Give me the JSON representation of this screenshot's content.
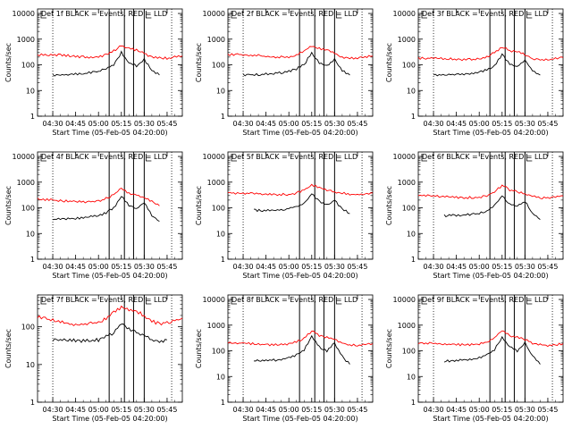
{
  "figure": {
    "start_time_label": "Start Time (05-Feb-05 04:20:00)",
    "ylabel": "Counts/sec",
    "ytick_labels": [
      "1",
      "10",
      "100",
      "1000",
      "10000"
    ],
    "xtick_labels": [
      "04:30",
      "04:45",
      "05:00",
      "05:15",
      "05:30",
      "05:45"
    ]
  },
  "chart_data": [
    {
      "type": "line",
      "title": "Det 1f BLACK = Events, RED = LLD",
      "xlabel": "Start Time (05-Feb-05 04:20:00)",
      "ylabel": "Counts/sec",
      "yscale": "log",
      "ylim": [
        1,
        15000
      ],
      "xlim": [
        "04:20",
        "05:55"
      ],
      "xticks": [
        "04:30",
        "04:45",
        "05:00",
        "05:15",
        "05:30",
        "05:45"
      ],
      "vlines_dotted": [
        "04:30",
        "05:48"
      ],
      "vlines_solid": [
        "05:07",
        "05:17",
        "05:23",
        "05:30"
      ],
      "series": [
        {
          "name": "Events",
          "color": "#000000",
          "x": [
            "04:30",
            "04:40",
            "04:50",
            "05:00",
            "05:05",
            "05:10",
            "05:15",
            "05:20",
            "05:25",
            "05:30",
            "05:35",
            "05:40"
          ],
          "y": [
            40,
            42,
            45,
            55,
            70,
            100,
            300,
            120,
            90,
            160,
            60,
            40
          ]
        },
        {
          "name": "LLD",
          "color": "#ff0000",
          "x": [
            "04:20",
            "04:30",
            "04:40",
            "04:50",
            "05:00",
            "05:05",
            "05:10",
            "05:15",
            "05:20",
            "05:25",
            "05:30",
            "05:35",
            "05:40",
            "05:45",
            "05:55"
          ],
          "y": [
            250,
            250,
            230,
            200,
            200,
            250,
            350,
            550,
            420,
            380,
            280,
            200,
            190,
            180,
            220
          ]
        }
      ]
    },
    {
      "type": "line",
      "title": "Det 2f BLACK = Events, RED = LLD",
      "xlabel": "Start Time (05-Feb-05 04:20:00)",
      "ylabel": "Counts/sec",
      "yscale": "log",
      "ylim": [
        1,
        15000
      ],
      "xlim": [
        "04:20",
        "05:55"
      ],
      "xticks": [
        "04:30",
        "04:45",
        "05:00",
        "05:15",
        "05:30",
        "05:45"
      ],
      "vlines_dotted": [
        "04:30",
        "05:48"
      ],
      "vlines_solid": [
        "05:07",
        "05:17",
        "05:23",
        "05:30"
      ],
      "series": [
        {
          "name": "Events",
          "color": "#000000",
          "x": [
            "04:30",
            "04:40",
            "04:50",
            "05:00",
            "05:05",
            "05:10",
            "05:15",
            "05:20",
            "05:25",
            "05:30",
            "05:35",
            "05:40"
          ],
          "y": [
            40,
            42,
            45,
            55,
            70,
            100,
            300,
            120,
            90,
            160,
            60,
            40
          ]
        },
        {
          "name": "LLD",
          "color": "#ff0000",
          "x": [
            "04:20",
            "04:30",
            "04:40",
            "04:50",
            "05:00",
            "05:05",
            "05:10",
            "05:15",
            "05:20",
            "05:25",
            "05:30",
            "05:35",
            "05:40",
            "05:45",
            "05:55"
          ],
          "y": [
            250,
            250,
            230,
            200,
            200,
            250,
            350,
            550,
            420,
            380,
            280,
            200,
            190,
            180,
            220
          ]
        }
      ]
    },
    {
      "type": "line",
      "title": "Det 3f BLACK = Events, RED = LLD",
      "xlabel": "Start Time (05-Feb-05 04:20:00)",
      "ylabel": "Counts/sec",
      "yscale": "log",
      "ylim": [
        1,
        15000
      ],
      "xlim": [
        "04:20",
        "05:55"
      ],
      "xticks": [
        "04:30",
        "04:45",
        "05:00",
        "05:15",
        "05:30",
        "05:45"
      ],
      "vlines_dotted": [
        "04:30",
        "05:48"
      ],
      "vlines_solid": [
        "05:07",
        "05:17",
        "05:23",
        "05:30"
      ],
      "series": [
        {
          "name": "Events",
          "color": "#000000",
          "x": [
            "04:30",
            "04:40",
            "04:50",
            "05:00",
            "05:05",
            "05:10",
            "05:15",
            "05:20",
            "05:25",
            "05:30",
            "05:35",
            "05:40"
          ],
          "y": [
            40,
            42,
            45,
            50,
            65,
            90,
            250,
            110,
            85,
            150,
            60,
            40
          ]
        },
        {
          "name": "LLD",
          "color": "#ff0000",
          "x": [
            "04:20",
            "04:30",
            "04:40",
            "04:50",
            "05:00",
            "05:05",
            "05:10",
            "05:15",
            "05:20",
            "05:25",
            "05:30",
            "05:35",
            "05:40",
            "05:45",
            "05:55"
          ],
          "y": [
            180,
            180,
            170,
            160,
            170,
            200,
            300,
            500,
            350,
            320,
            250,
            170,
            160,
            160,
            190
          ]
        }
      ]
    },
    {
      "type": "line",
      "title": "Det 4f BLACK = Events, RED = LLD",
      "xlabel": "Start Time (05-Feb-05 04:20:00)",
      "ylabel": "Counts/sec",
      "yscale": "log",
      "ylim": [
        1,
        15000
      ],
      "xlim": [
        "04:20",
        "05:55"
      ],
      "xticks": [
        "04:30",
        "04:45",
        "05:00",
        "05:15",
        "05:30",
        "05:45"
      ],
      "vlines_dotted": [
        "04:30",
        "05:48"
      ],
      "vlines_solid": [
        "05:07",
        "05:17",
        "05:23",
        "05:30"
      ],
      "series": [
        {
          "name": "Events",
          "color": "#000000",
          "x": [
            "04:30",
            "04:40",
            "04:50",
            "05:00",
            "05:05",
            "05:10",
            "05:15",
            "05:20",
            "05:25",
            "05:30",
            "05:35",
            "05:40"
          ],
          "y": [
            35,
            38,
            40,
            50,
            65,
            100,
            280,
            120,
            90,
            170,
            50,
            30
          ]
        },
        {
          "name": "LLD",
          "color": "#ff0000",
          "x": [
            "04:20",
            "04:30",
            "04:40",
            "04:50",
            "05:00",
            "05:05",
            "05:10",
            "05:15",
            "05:20",
            "05:25",
            "05:30",
            "05:35",
            "05:40"
          ],
          "y": [
            220,
            200,
            180,
            170,
            180,
            230,
            330,
            550,
            380,
            320,
            250,
            180,
            120
          ]
        }
      ]
    },
    {
      "type": "line",
      "title": "Det 5f BLACK = Events, RED = LLD",
      "xlabel": "Start Time (05-Feb-05 04:20:00)",
      "ylabel": "Counts/sec",
      "yscale": "log",
      "ylim": [
        1,
        15000
      ],
      "xlim": [
        "04:20",
        "05:55"
      ],
      "xticks": [
        "04:30",
        "04:45",
        "05:00",
        "05:15",
        "05:30",
        "05:45"
      ],
      "vlines_dotted": [
        "04:30",
        "05:48"
      ],
      "vlines_solid": [
        "05:07",
        "05:17",
        "05:23",
        "05:30"
      ],
      "series": [
        {
          "name": "Events",
          "color": "#000000",
          "x": [
            "04:37",
            "04:45",
            "04:55",
            "05:00",
            "05:05",
            "05:10",
            "05:15",
            "05:20",
            "05:25",
            "05:30",
            "05:35",
            "05:40"
          ],
          "y": [
            80,
            80,
            85,
            95,
            110,
            150,
            350,
            180,
            130,
            200,
            90,
            60
          ]
        },
        {
          "name": "LLD",
          "color": "#ff0000",
          "x": [
            "04:20",
            "04:30",
            "04:40",
            "04:50",
            "05:00",
            "05:05",
            "05:10",
            "05:15",
            "05:20",
            "05:25",
            "05:30",
            "05:35",
            "05:40",
            "05:45",
            "05:55"
          ],
          "y": [
            380,
            370,
            350,
            330,
            330,
            380,
            500,
            800,
            600,
            500,
            420,
            370,
            340,
            320,
            380
          ]
        }
      ]
    },
    {
      "type": "line",
      "title": "Det 6f BLACK = Events, RED = LLD",
      "xlabel": "Start Time (05-Feb-05 04:20:00)",
      "ylabel": "Counts/sec",
      "yscale": "log",
      "ylim": [
        1,
        15000
      ],
      "xlim": [
        "04:20",
        "05:55"
      ],
      "xticks": [
        "04:30",
        "04:45",
        "05:00",
        "05:15",
        "05:30",
        "05:45"
      ],
      "vlines_dotted": [
        "04:30",
        "05:48"
      ],
      "vlines_solid": [
        "05:07",
        "05:17",
        "05:23",
        "05:30"
      ],
      "series": [
        {
          "name": "Events",
          "color": "#000000",
          "x": [
            "04:37",
            "04:45",
            "04:55",
            "05:00",
            "05:05",
            "05:10",
            "05:15",
            "05:20",
            "05:25",
            "05:30",
            "05:35",
            "05:40"
          ],
          "y": [
            50,
            50,
            55,
            60,
            75,
            120,
            300,
            140,
            110,
            180,
            60,
            35
          ]
        },
        {
          "name": "LLD",
          "color": "#ff0000",
          "x": [
            "04:20",
            "04:30",
            "04:40",
            "04:50",
            "05:00",
            "05:05",
            "05:10",
            "05:15",
            "05:20",
            "05:25",
            "05:30",
            "05:35",
            "05:40",
            "05:45",
            "05:55"
          ],
          "y": [
            300,
            290,
            270,
            250,
            250,
            300,
            420,
            750,
            500,
            420,
            350,
            280,
            250,
            240,
            290
          ]
        }
      ]
    },
    {
      "type": "line",
      "title": "Det 7f BLACK = Events, RED = LLD",
      "xlabel": "Start Time (05-Feb-05 04:20:00)",
      "ylabel": "Counts/sec",
      "yscale": "log",
      "ylim": [
        1,
        700
      ],
      "xlim": [
        "04:20",
        "05:55"
      ],
      "xticks": [
        "04:30",
        "04:45",
        "05:00",
        "05:15",
        "05:30",
        "05:45"
      ],
      "vlines_dotted": [
        "04:30",
        "05:48"
      ],
      "vlines_solid": [
        "05:07",
        "05:17",
        "05:23",
        "05:30"
      ],
      "series": [
        {
          "name": "Events",
          "color": "#000000",
          "x": [
            "04:30",
            "04:40",
            "04:50",
            "05:00",
            "05:05",
            "05:10",
            "05:15",
            "05:20",
            "05:25",
            "05:30",
            "05:35",
            "05:40",
            "05:45"
          ],
          "y": [
            45,
            45,
            42,
            45,
            55,
            70,
            120,
            90,
            70,
            60,
            45,
            40,
            45
          ]
        },
        {
          "name": "LLD",
          "color": "#ff0000",
          "x": [
            "04:20",
            "04:30",
            "04:40",
            "04:50",
            "05:00",
            "05:05",
            "05:10",
            "05:15",
            "05:20",
            "05:25",
            "05:30",
            "05:35",
            "05:40",
            "05:45",
            "05:55"
          ],
          "y": [
            180,
            150,
            120,
            115,
            130,
            170,
            240,
            330,
            280,
            260,
            200,
            140,
            120,
            130,
            170
          ]
        }
      ]
    },
    {
      "type": "line",
      "title": "Det 8f BLACK = Events, RED = LLD",
      "xlabel": "Start Time (05-Feb-05 04:20:00)",
      "ylabel": "Counts/sec",
      "yscale": "log",
      "ylim": [
        1,
        15000
      ],
      "xlim": [
        "04:20",
        "05:55"
      ],
      "xticks": [
        "04:30",
        "04:45",
        "05:00",
        "05:15",
        "05:30",
        "05:45"
      ],
      "vlines_dotted": [
        "04:30",
        "05:48"
      ],
      "vlines_solid": [
        "05:07",
        "05:17",
        "05:23",
        "05:30"
      ],
      "series": [
        {
          "name": "Events",
          "color": "#000000",
          "x": [
            "04:37",
            "04:45",
            "04:55",
            "05:00",
            "05:05",
            "05:10",
            "05:15",
            "05:20",
            "05:25",
            "05:30",
            "05:35",
            "05:40"
          ],
          "y": [
            40,
            42,
            45,
            55,
            70,
            110,
            350,
            140,
            100,
            200,
            60,
            30
          ]
        },
        {
          "name": "LLD",
          "color": "#ff0000",
          "x": [
            "04:20",
            "04:30",
            "04:40",
            "04:50",
            "05:00",
            "05:05",
            "05:10",
            "05:15",
            "05:20",
            "05:25",
            "05:30",
            "05:35",
            "05:40",
            "05:45",
            "05:55"
          ],
          "y": [
            200,
            200,
            180,
            170,
            180,
            220,
            320,
            600,
            400,
            330,
            280,
            200,
            170,
            160,
            190
          ]
        }
      ]
    },
    {
      "type": "line",
      "title": "Det 9f BLACK = Events, RED = LLD",
      "xlabel": "Start Time (05-Feb-05 04:20:00)",
      "ylabel": "Counts/sec",
      "yscale": "log",
      "ylim": [
        1,
        15000
      ],
      "xlim": [
        "04:20",
        "05:55"
      ],
      "xticks": [
        "04:30",
        "04:45",
        "05:00",
        "05:15",
        "05:30",
        "05:45"
      ],
      "vlines_dotted": [
        "04:30",
        "05:48"
      ],
      "vlines_solid": [
        "05:07",
        "05:17",
        "05:23",
        "05:30"
      ],
      "series": [
        {
          "name": "Events",
          "color": "#000000",
          "x": [
            "04:37",
            "04:45",
            "04:55",
            "05:00",
            "05:05",
            "05:10",
            "05:15",
            "05:20",
            "05:25",
            "05:30",
            "05:35",
            "05:40"
          ],
          "y": [
            40,
            42,
            45,
            55,
            70,
            110,
            350,
            140,
            100,
            200,
            60,
            30
          ]
        },
        {
          "name": "LLD",
          "color": "#ff0000",
          "x": [
            "04:20",
            "04:30",
            "04:40",
            "04:50",
            "05:00",
            "05:05",
            "05:10",
            "05:15",
            "05:20",
            "05:25",
            "05:30",
            "05:35",
            "05:40",
            "05:45",
            "05:55"
          ],
          "y": [
            200,
            200,
            180,
            170,
            180,
            220,
            320,
            600,
            400,
            330,
            280,
            200,
            170,
            160,
            190
          ]
        }
      ]
    }
  ]
}
